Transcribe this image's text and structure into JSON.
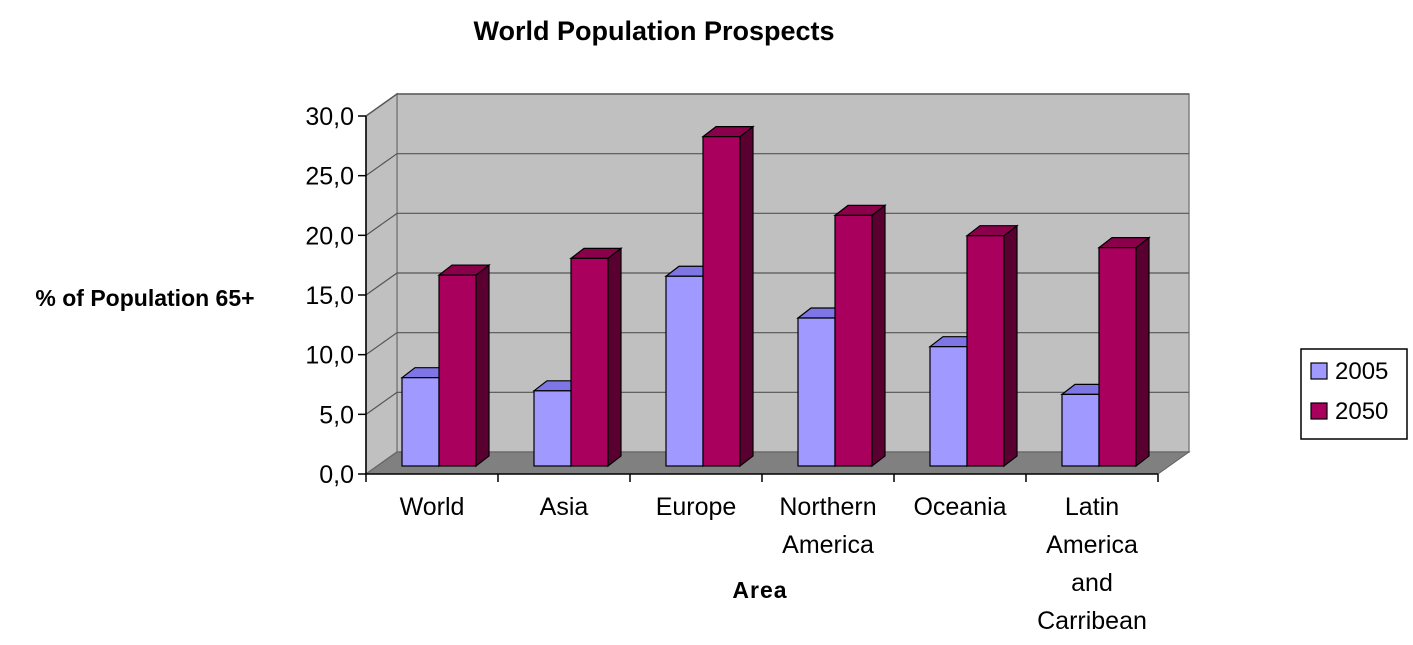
{
  "chart_data": {
    "type": "bar",
    "title": "World Population Prospects",
    "xlabel": "Area",
    "ylabel": "% of Population 65+",
    "categories": [
      [
        "World"
      ],
      [
        "Asia"
      ],
      [
        "Europe"
      ],
      [
        "Northern",
        "America"
      ],
      [
        "Oceania"
      ],
      [
        "Latin",
        "America",
        "and",
        "Carribean"
      ]
    ],
    "series": [
      {
        "name": "2005",
        "values": [
          7.4,
          6.3,
          15.9,
          12.4,
          10.0,
          6.0
        ]
      },
      {
        "name": "2050",
        "values": [
          16.0,
          17.4,
          27.6,
          21.0,
          19.3,
          18.3
        ]
      }
    ],
    "ylim": [
      0,
      30
    ],
    "ytick_step": 5,
    "yticks": [
      "0,0",
      "5,0",
      "10,0",
      "15,0",
      "20,0",
      "25,0",
      "30,0"
    ],
    "grid": true,
    "legend_position": "right",
    "colors": {
      "series": [
        "#a099ff",
        "#a8005c"
      ],
      "series_top": [
        "#7f76e6",
        "#8a004a"
      ],
      "series_side": [
        "#5a52b8",
        "#5a0030"
      ],
      "wall": "#c0c0c0",
      "floor": "#808080",
      "grid": "#555555"
    }
  }
}
